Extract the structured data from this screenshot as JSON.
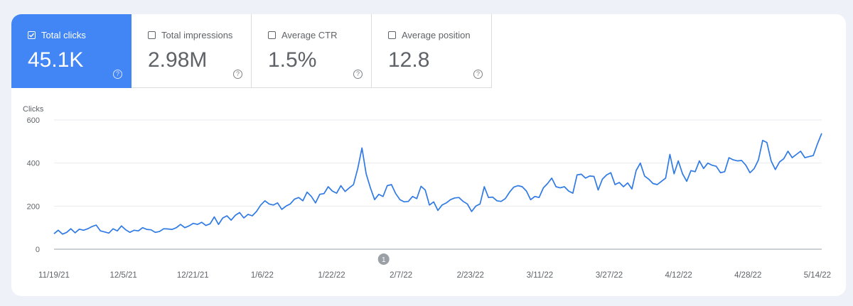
{
  "metrics": [
    {
      "label": "Total clicks",
      "value": "45.1K",
      "selected": true
    },
    {
      "label": "Total impressions",
      "value": "2.98M",
      "selected": false
    },
    {
      "label": "Average CTR",
      "value": "1.5%",
      "selected": false
    },
    {
      "label": "Average position",
      "value": "12.8",
      "selected": false
    }
  ],
  "help_glyph": "?",
  "annotation_label": "1",
  "colors": {
    "accent": "#4285f4",
    "line": "#2f7ae5",
    "annotation": "#9aa0a6"
  },
  "chart_data": {
    "type": "line",
    "ylabel": "Clicks",
    "ylim": [
      0,
      600
    ],
    "yticks": [
      0,
      200,
      400,
      600
    ],
    "grid": true,
    "xticks": [
      "11/19/21",
      "12/5/21",
      "12/21/21",
      "1/6/22",
      "1/22/22",
      "2/7/22",
      "2/23/22",
      "3/11/22",
      "3/27/22",
      "4/12/22",
      "4/28/22",
      "5/14/22"
    ],
    "x_start": "11/19/21",
    "x_end": "5/15/22",
    "annotation": {
      "date": "2/3/22",
      "label": "1"
    },
    "series": [
      {
        "values": [
          72,
          88,
          70,
          78,
          95,
          76,
          93,
          88,
          95,
          105,
          112,
          85,
          80,
          75,
          95,
          85,
          108,
          90,
          78,
          88,
          85,
          100,
          92,
          90,
          78,
          82,
          95,
          94,
          92,
          100,
          115,
          100,
          108,
          120,
          115,
          125,
          110,
          118,
          150,
          115,
          145,
          155,
          135,
          158,
          170,
          145,
          162,
          155,
          175,
          205,
          225,
          210,
          205,
          215,
          185,
          200,
          210,
          232,
          240,
          225,
          265,
          245,
          215,
          255,
          258,
          290,
          270,
          260,
          295,
          268,
          285,
          300,
          375,
          470,
          350,
          285,
          230,
          255,
          245,
          295,
          300,
          258,
          230,
          220,
          222,
          245,
          235,
          292,
          275,
          205,
          220,
          180,
          205,
          215,
          230,
          238,
          240,
          222,
          210,
          175,
          200,
          210,
          290,
          240,
          242,
          225,
          222,
          235,
          265,
          288,
          295,
          290,
          270,
          230,
          245,
          240,
          285,
          305,
          330,
          290,
          285,
          290,
          270,
          260,
          345,
          348,
          330,
          340,
          338,
          275,
          325,
          345,
          355,
          300,
          310,
          290,
          308,
          280,
          365,
          400,
          340,
          325,
          305,
          300,
          315,
          330,
          440,
          350,
          410,
          350,
          315,
          365,
          360,
          410,
          375,
          400,
          390,
          385,
          355,
          360,
          425,
          415,
          410,
          412,
          390,
          355,
          375,
          415,
          505,
          495,
          410,
          370,
          405,
          420,
          455,
          425,
          440,
          455,
          425,
          430,
          435,
          490,
          538
        ]
      }
    ]
  }
}
